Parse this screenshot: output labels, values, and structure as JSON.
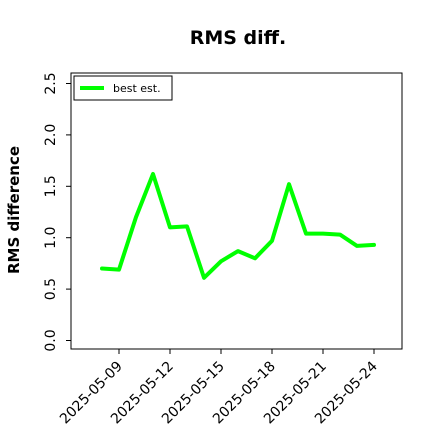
{
  "chart_data": {
    "type": "line",
    "title": "RMS diff.",
    "ylabel": "RMS difference",
    "xlabel": "",
    "ylim": [
      0.0,
      2.6
    ],
    "yticks": [
      0.0,
      0.5,
      1.0,
      1.5,
      2.0,
      2.5
    ],
    "ytick_labels": [
      "0.0",
      "0.5",
      "1.0",
      "1.5",
      "2.0",
      "2.5"
    ],
    "xticks": [
      "2025-05-09",
      "2025-05-12",
      "2025-05-15",
      "2025-05-18",
      "2025-05-21",
      "2025-05-24"
    ],
    "legend_position": "top-left",
    "series": [
      {
        "name": "best est.",
        "color": "#00ff00",
        "x": [
          "2025-05-08",
          "2025-05-09",
          "2025-05-10",
          "2025-05-11",
          "2025-05-12",
          "2025-05-13",
          "2025-05-14",
          "2025-05-15",
          "2025-05-16",
          "2025-05-17",
          "2025-05-18",
          "2025-05-19",
          "2025-05-20",
          "2025-05-21",
          "2025-05-22",
          "2025-05-23",
          "2025-05-24"
        ],
        "values": [
          0.7,
          0.69,
          1.2,
          1.62,
          1.1,
          1.11,
          0.61,
          0.77,
          0.87,
          0.8,
          0.97,
          1.52,
          1.04,
          1.04,
          1.03,
          0.92,
          0.93
        ]
      }
    ]
  }
}
